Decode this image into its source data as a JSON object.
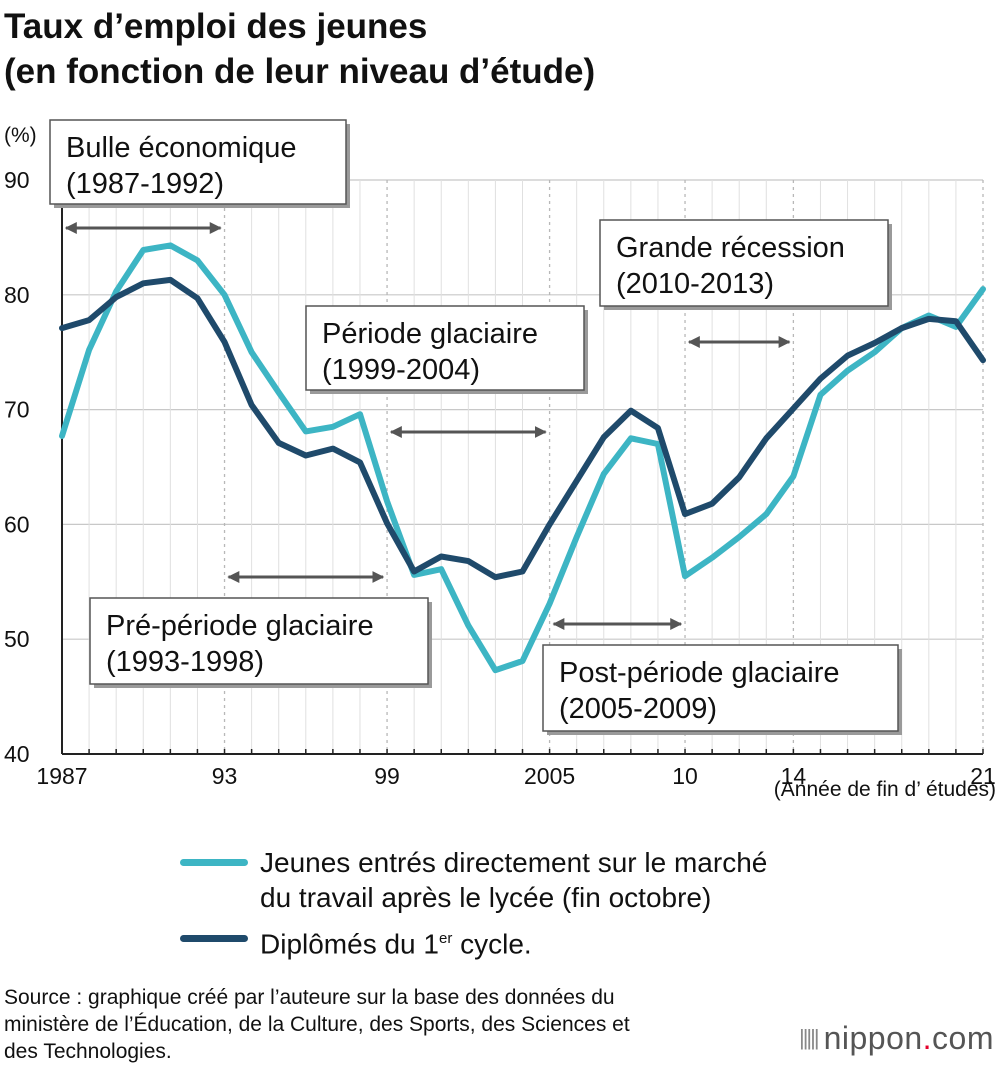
{
  "title_lines": [
    "Taux d’emploi des jeunes",
    "(en fonction de leur niveau d’étude)"
  ],
  "chart_data": {
    "type": "line",
    "title": "Taux d’emploi des jeunes (en fonction de leur niveau d’étude)",
    "ylabel": "(%)",
    "xlabel": "(Année de fin d’  études)",
    "ylim": [
      40,
      90
    ],
    "xlim": [
      1987,
      2021
    ],
    "grid": true,
    "y_ticks": [
      40,
      50,
      60,
      70,
      80,
      90
    ],
    "x_ticks": [
      {
        "year": 1987,
        "label": "1987"
      },
      {
        "year": 1993,
        "label": "93"
      },
      {
        "year": 1999,
        "label": "99"
      },
      {
        "year": 2005,
        "label": "2005"
      },
      {
        "year": 2010,
        "label": "10"
      },
      {
        "year": 2014,
        "label": "14"
      },
      {
        "year": 2021,
        "label": "21"
      }
    ],
    "x": [
      1987,
      1988,
      1989,
      1990,
      1991,
      1992,
      1993,
      1994,
      1995,
      1996,
      1997,
      1998,
      1999,
      2000,
      2001,
      2002,
      2003,
      2004,
      2005,
      2006,
      2007,
      2008,
      2009,
      2010,
      2011,
      2012,
      2013,
      2014,
      2015,
      2016,
      2017,
      2018,
      2019,
      2020,
      2021
    ],
    "series": [
      {
        "name": "Jeunes entrés directement sur le marché du travail après le lycée (fin octobre)",
        "color": "#3db5c4",
        "values": [
          67.7,
          75.2,
          80.3,
          83.9,
          84.3,
          83.0,
          80.0,
          75.0,
          71.5,
          68.1,
          68.5,
          69.6,
          62.0,
          55.6,
          56.1,
          51.2,
          47.3,
          48.1,
          53.1,
          58.9,
          64.4,
          67.5,
          67.0,
          55.5,
          57.1,
          58.9,
          60.9,
          64.2,
          71.3,
          73.4,
          75.0,
          77.1,
          78.2,
          77.2,
          80.5
        ]
      },
      {
        "name": "Diplômés du 1er cycle.",
        "color": "#1f4a6b",
        "values": [
          77.1,
          77.8,
          79.8,
          81.0,
          81.3,
          79.7,
          75.9,
          70.4,
          67.1,
          66.0,
          66.6,
          65.4,
          60.1,
          55.9,
          57.2,
          56.8,
          55.4,
          55.9,
          60.0,
          63.8,
          67.6,
          69.9,
          68.4,
          60.9,
          61.8,
          64.1,
          67.5,
          70.1,
          72.7,
          74.7,
          75.8,
          77.1,
          77.9,
          77.7,
          74.3
        ]
      }
    ],
    "annotations": [
      {
        "lines": [
          "Bulle économique",
          "(1987-1992)"
        ],
        "start": 1987,
        "end": 1993
      },
      {
        "lines": [
          "Pré-période glaciaire",
          "(1993-1998)"
        ],
        "start": 1993,
        "end": 1999
      },
      {
        "lines": [
          "Période glaciaire",
          "(1999-2004)"
        ],
        "start": 1999,
        "end": 2005
      },
      {
        "lines": [
          "Post-période glaciaire",
          "(2005-2009)"
        ],
        "start": 2005,
        "end": 2010
      },
      {
        "lines": [
          "Grande récession",
          "(2010-2013)"
        ],
        "start": 2010,
        "end": 2014
      }
    ]
  },
  "legend": [
    {
      "swatch_color": "#3db5c4",
      "lines": [
        "Jeunes entrés directement sur le marché",
        "du travail après le lycée (fin octobre)"
      ]
    },
    {
      "swatch_color": "#1f4a6b",
      "text": "Diplômés du 1",
      "sup": "er",
      "text_after": " cycle."
    }
  ],
  "source_lines": [
    "Source : graphique créé par l’auteure sur la base des données du",
    "ministère de l’Éducation, de la Culture, des Sports, des Sciences et",
    "des Technologies."
  ],
  "logo": {
    "name": "nippon",
    "dot": ".",
    "suffix": "com"
  }
}
